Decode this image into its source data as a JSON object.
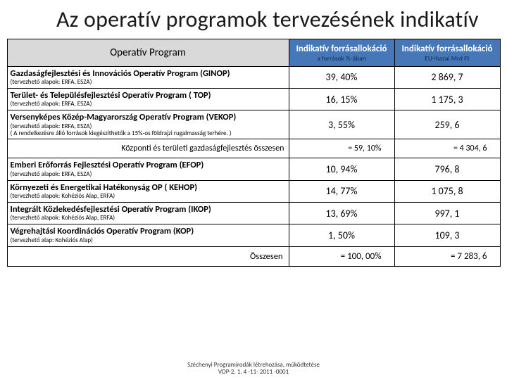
{
  "title": "Az operatív programok tervezésének indikatív",
  "table": {
    "headers": {
      "op": "Operatív Program",
      "pct": {
        "main": "Indikatív forrásallokáció",
        "sub": "a források %-ában"
      },
      "amt": {
        "main": "Indikatív forrásallokáció",
        "sub": "EU+hazai Mrd Ft"
      }
    },
    "rows": [
      {
        "name": "Gazdaságfejlesztési és Innovációs Operatív Program (GINOP)",
        "note": "(tervezhető alapok: ERFA, ESZA)",
        "pct": "39, 40%",
        "amt": "2 869, 7"
      },
      {
        "name": "Terület- és Településfejlesztési Operatív Program ( TOP)",
        "note": "(tervezhető alapok: ERFA, ESZA)",
        "pct": "16, 15%",
        "amt": "1 175, 3"
      },
      {
        "name": "Versenyképes Közép-Magyarország Operatív Program (VEKOP)",
        "note": "(tervezhető alapok: ERFA, ESZA)\n( A rendelkezésre álló források kiegészíthetők a 15%-os földrajzi rugalmasság terhére. )",
        "pct": "3, 55%",
        "amt": "259, 6"
      }
    ],
    "subtotal": {
      "label": "Központi és területi gazdaságfejlesztés összesen",
      "pct": "= 59, 10%",
      "amt": "= 4 304, 6"
    },
    "rows2": [
      {
        "name": "Emberi Erőforrás Fejlesztési Operatív Program (EFOP)",
        "note": "(tervezhető alapok: ERFA, ESZA)",
        "pct": "10, 94%",
        "amt": "796, 8"
      },
      {
        "name": "Környezeti és Energetikai Hatékonyság OP ( KEHOP)",
        "note": "(tervezhető alapok: Kohéziós Alap, ERFA)",
        "pct": "14, 77%",
        "amt": "1 075, 8"
      },
      {
        "name": "Integrált Közlekedésfejlesztési Operatív Program (IKOP)",
        "note": "(tervezhető alapok: Kohéziós Alap, ERFA)",
        "pct": "13, 69%",
        "amt": "997, 1"
      },
      {
        "name": "Végrehajtási Koordinációs Operatív Program (KOP)",
        "note": "(tervezhető alap: Kohéziós Alap)",
        "pct": "1, 50%",
        "amt": "109, 3"
      }
    ],
    "total": {
      "label": "Összesen",
      "pct": "= 100, 00%",
      "amt": "= 7 283, 6"
    }
  },
  "footer": {
    "line1": "Széchenyi Programirodák létrehozása, működtetése",
    "line2": "VOP-2. 1. 4 -11- 2011 -0001"
  },
  "colors": {
    "header_op_bg": "#d9d9d9",
    "header_ind_bg": "#4677b7",
    "header_ind_fg": "#ffffff",
    "header_sub_fg": "#0b2b52",
    "border": "#000000",
    "text": "#000000"
  }
}
